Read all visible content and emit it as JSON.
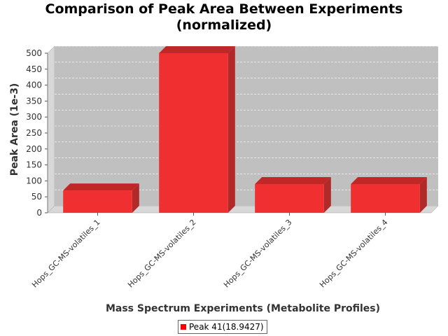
{
  "chart_data": {
    "type": "bar",
    "title_lines": [
      "Comparison of Peak Area Between Experiments",
      "(normalized)"
    ],
    "xlabel": "Mass Spectrum Experiments (Metabolite Profiles)",
    "ylabel": "Peak Area (1e-3)",
    "categories": [
      "Hops_GC-MS-volatiles_1",
      "Hops_GC-MS-volatiles_2",
      "Hops_GC-MS-volatiles_3",
      "Hops_GC-MS-volatiles_4"
    ],
    "series": [
      {
        "name": "Peak 41(18.9427)",
        "values": [
          70,
          500,
          90,
          90
        ]
      }
    ],
    "ylim": [
      0,
      500
    ],
    "yticks": [
      "0",
      "50",
      "100",
      "150",
      "200",
      "250",
      "300",
      "350",
      "400",
      "450",
      "500"
    ],
    "grid": true,
    "legend_position": "bottom",
    "colors": {
      "bar": "#f03030",
      "bar_top": "#c02828",
      "bar_side": "#b02a2a",
      "plot_bg": "#c0c0c0",
      "wall": "#d8d8d8"
    }
  }
}
